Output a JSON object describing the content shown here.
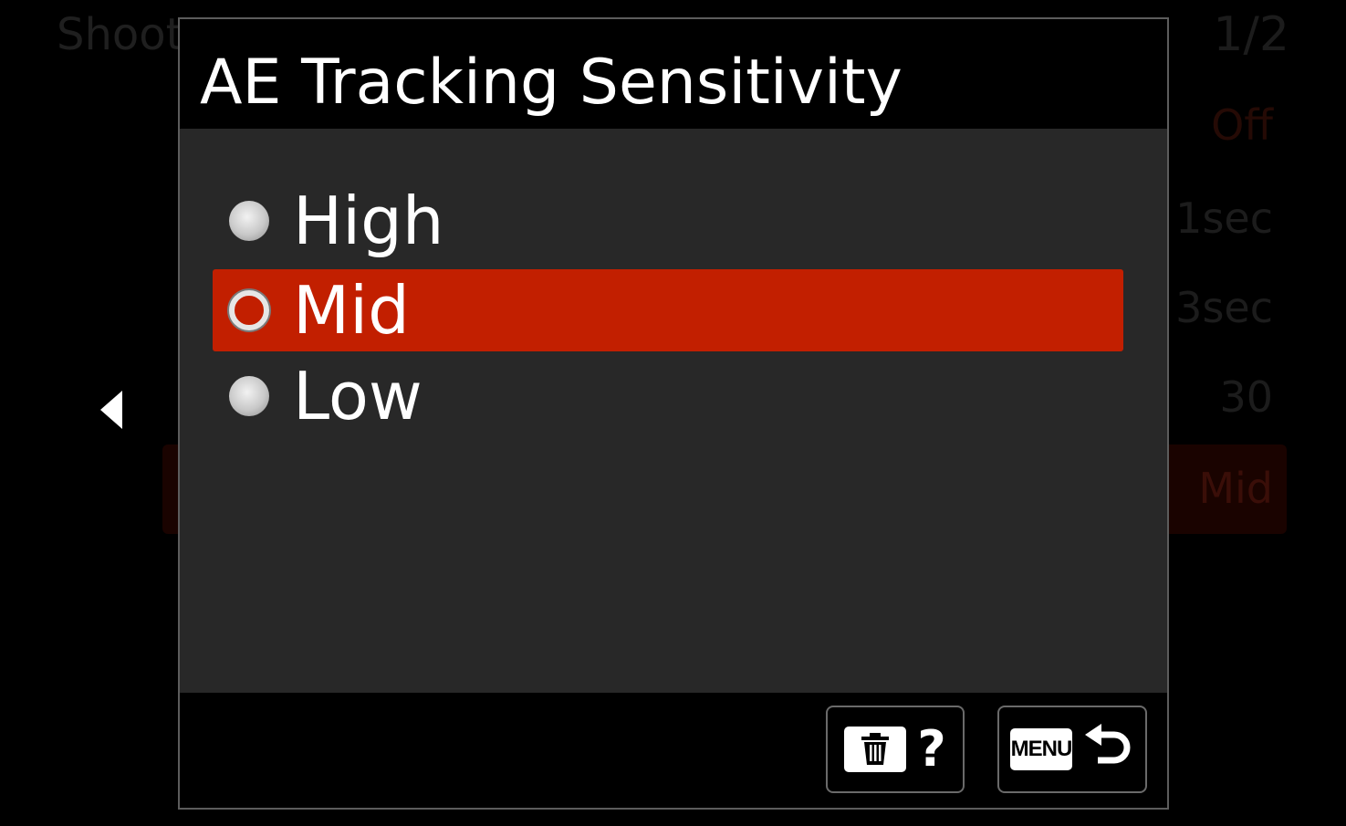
{
  "background_menu": {
    "title": "Shoot",
    "page": "1/2",
    "values": [
      "Off",
      "1sec",
      "3sec",
      "30",
      "Mid"
    ]
  },
  "dialog": {
    "title": "AE Tracking Sensitivity",
    "options": [
      {
        "label": "High",
        "selected": false
      },
      {
        "label": "Mid",
        "selected": true
      },
      {
        "label": "Low",
        "selected": false
      }
    ],
    "footer": {
      "help_icon": "trash-icon",
      "help_symbol": "?",
      "menu_label": "MENU",
      "back_icon": "return-arrow-icon"
    }
  },
  "colors": {
    "selection": "#c21f00",
    "body": "#282828",
    "text": "#ffffff"
  }
}
